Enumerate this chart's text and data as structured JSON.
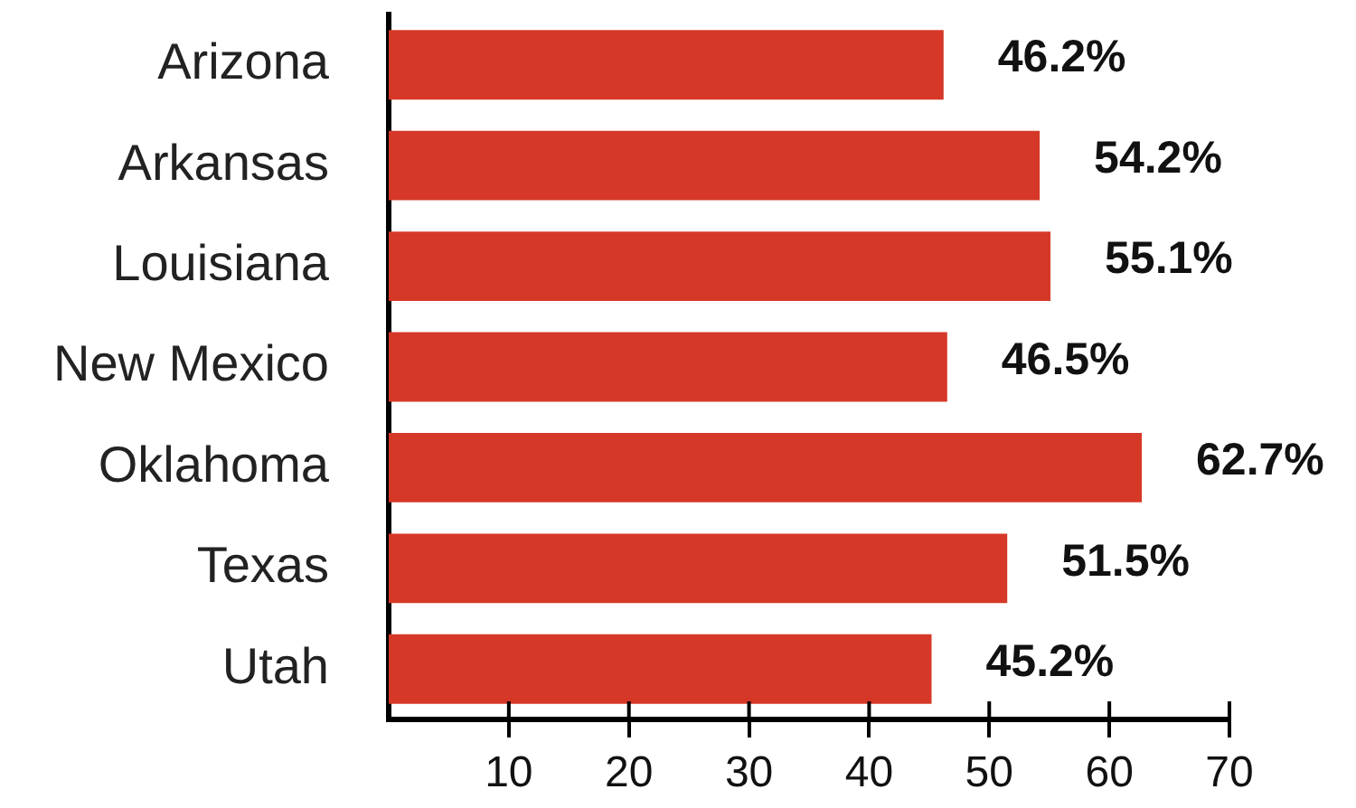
{
  "chart_data": {
    "type": "bar",
    "orientation": "horizontal",
    "categories": [
      "Arizona",
      "Arkansas",
      "Louisiana",
      "New Mexico",
      "Oklahoma",
      "Texas",
      "Utah"
    ],
    "values": [
      46.2,
      54.2,
      55.1,
      46.5,
      62.7,
      51.5,
      45.2
    ],
    "color": "#d63828",
    "value_labels": [
      "46.2%",
      "54.2%",
      "55.1%",
      "46.5%",
      "62.7%",
      "51.5%",
      "45.2%"
    ],
    "xlim": [
      0,
      70
    ],
    "xticks": [
      10,
      20,
      30,
      40,
      50,
      60,
      70
    ]
  }
}
